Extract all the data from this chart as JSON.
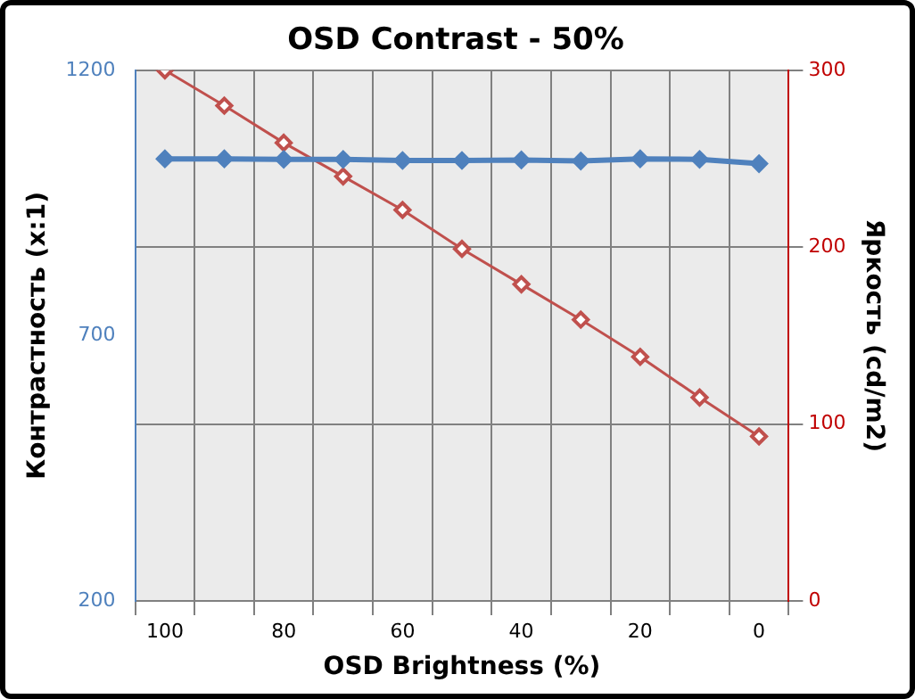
{
  "chart_data": {
    "type": "line",
    "title": "OSD Contrast - 50%",
    "xlabel": "OSD Brightness (%)",
    "ylabel": "Контрастность (x:1)",
    "y2label": "Яркость (cd/m2)",
    "categories": [
      "100",
      null,
      "80",
      null,
      "60",
      null,
      "40",
      null,
      "20",
      null,
      "0"
    ],
    "series": [
      {
        "color": "#4f81bd",
        "marker": "diamond",
        "values": [
          1033,
          1033,
          1032,
          1032,
          1030,
          1030,
          1031,
          1029,
          1033,
          1032,
          1024
        ]
      },
      {
        "color": "#c0504d",
        "marker": "diamond",
        "axis": "y2",
        "values": [
          300,
          280,
          259,
          240,
          221,
          199,
          179,
          159,
          138,
          115,
          93
        ]
      }
    ],
    "ylim": [
      200,
      1200
    ],
    "yticks": [
      200,
      700,
      1200
    ],
    "y2lim": [
      0,
      300
    ],
    "y2ticks": [
      0,
      100,
      200,
      300
    ],
    "grid": true,
    "legend": false
  }
}
